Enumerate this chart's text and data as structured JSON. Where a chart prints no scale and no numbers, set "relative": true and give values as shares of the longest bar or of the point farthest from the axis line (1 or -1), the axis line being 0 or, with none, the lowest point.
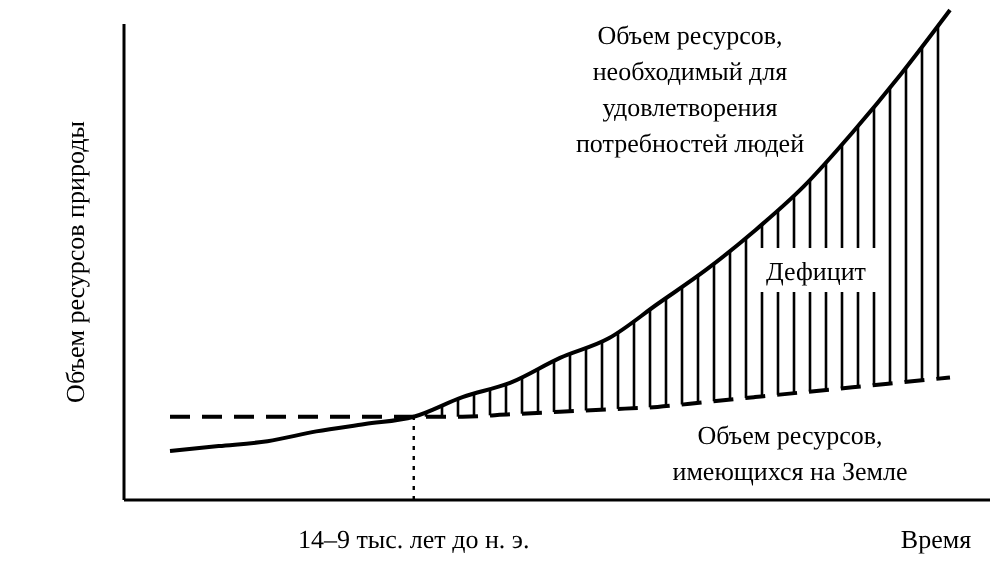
{
  "chart_data": {
    "type": "line",
    "relative": true,
    "xlabel": "Время",
    "ylabel": "Объем ресурсов природы",
    "categories": [
      null,
      null,
      null,
      null,
      null,
      null,
      null,
      null,
      null,
      null,
      null,
      null,
      null,
      null,
      null,
      null,
      null
    ],
    "series": [
      {
        "name": "Объем ресурсов,\nнеобходимый для\nудовлетворения\nпотребностей людей",
        "color": "#000000",
        "line_style": "solid",
        "values": [
          0.1,
          0.11,
          0.12,
          0.14,
          0.155,
          0.17,
          0.21,
          0.24,
          0.29,
          0.33,
          0.4,
          0.47,
          0.55,
          0.64,
          0.75,
          0.87,
          1
        ]
      },
      {
        "name": "Объем ресурсов,\nимеющихся на Земле",
        "color": "#000000",
        "line_style": "dashed",
        "values": [
          0.17,
          0.17,
          0.17,
          0.17,
          0.17,
          0.17,
          0.17,
          0.175,
          0.18,
          0.185,
          0.19,
          0.2,
          0.21,
          0.22,
          0.23,
          0.24,
          0.25
        ]
      }
    ],
    "annotations": [
      "Дефицит",
      "14–9 тыс. лет до н. э."
    ],
    "marker": "none"
  }
}
